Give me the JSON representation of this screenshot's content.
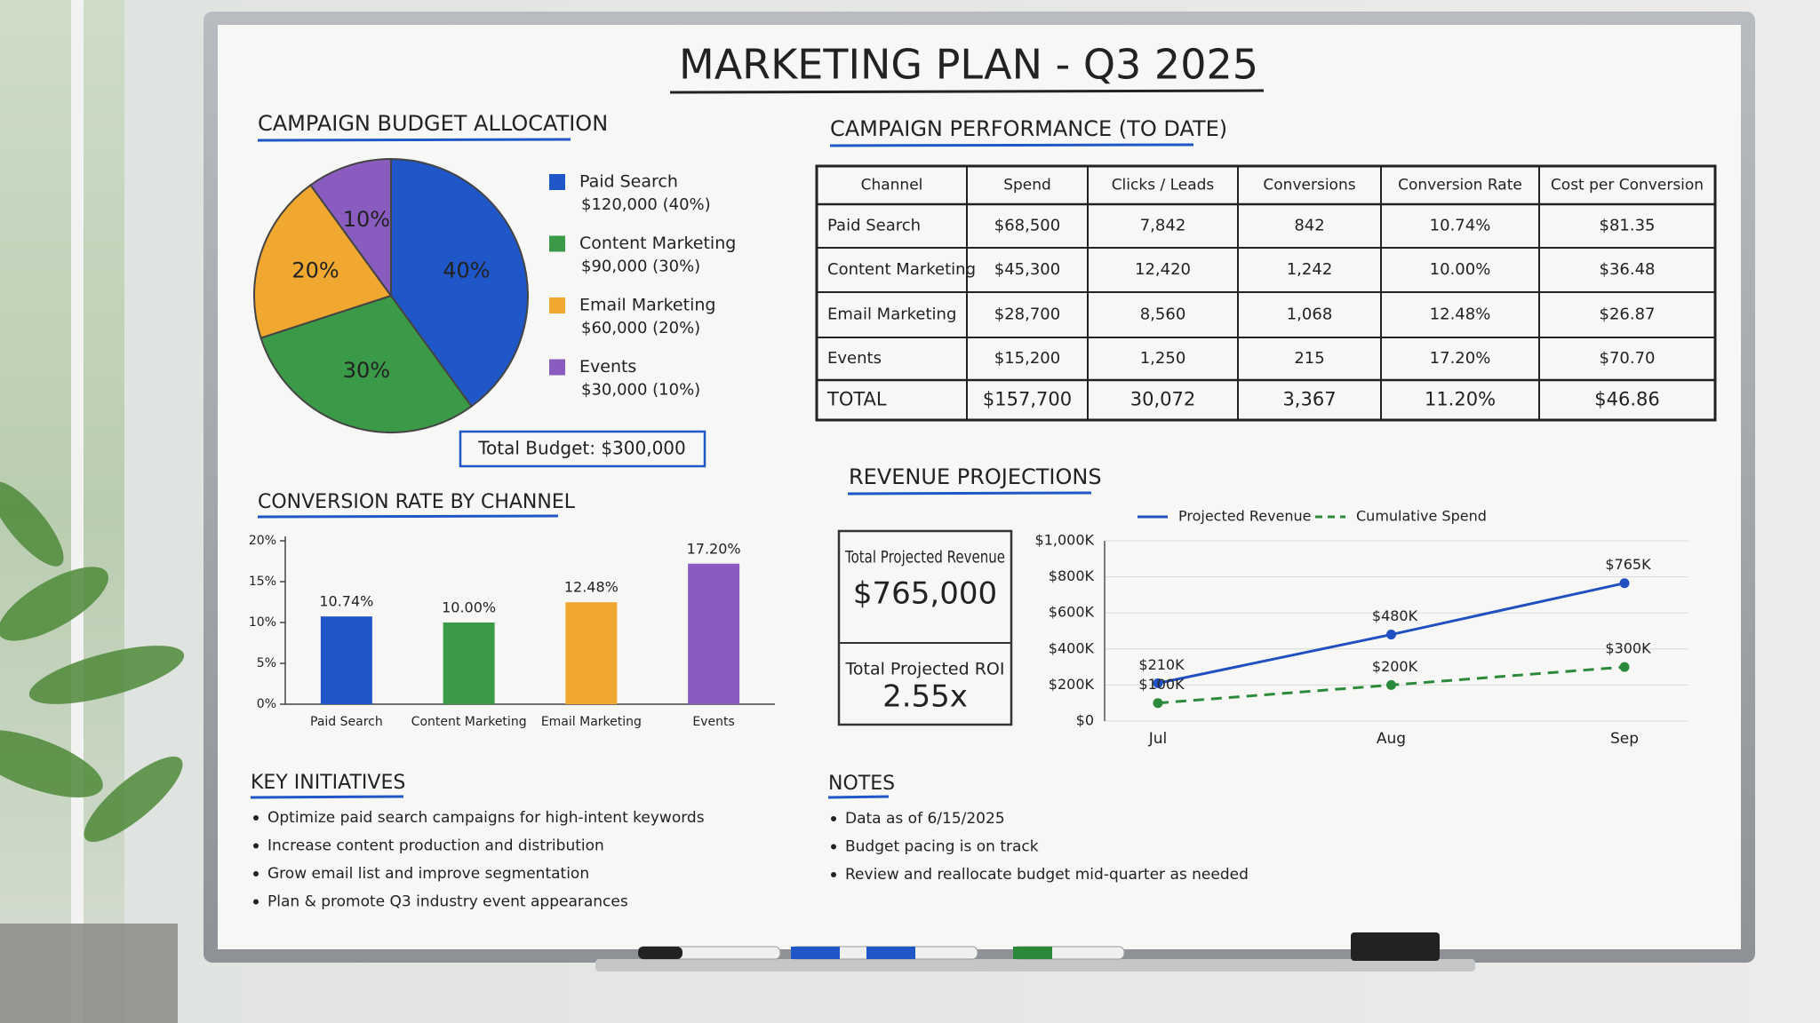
{
  "title": "MARKETING PLAN - Q3 2025",
  "chart_data": [
    {
      "type": "pie",
      "title": "CAMPAIGN BUDGET ALLOCATION",
      "categories": [
        "Paid Search",
        "Content Marketing",
        "Email Marketing",
        "Events"
      ],
      "values": [
        40,
        30,
        20,
        10
      ],
      "value_labels": [
        "40%",
        "30%",
        "20%",
        "10%"
      ],
      "colors": [
        "#1f56c8",
        "#3a9a48",
        "#f0a830",
        "#8a5cc0"
      ],
      "legend_details": [
        "$120,000 (40%)",
        "$90,000 (30%)",
        "$60,000 (20%)",
        "$30,000 (10%)"
      ],
      "total": "Total Budget: $300,000"
    },
    {
      "type": "bar",
      "title": "CONVERSION RATE BY CHANNEL",
      "categories": [
        "Paid Search",
        "Content Marketing",
        "Email Marketing",
        "Events"
      ],
      "values": [
        10.74,
        10.0,
        12.48,
        17.2
      ],
      "value_labels": [
        "10.74%",
        "10.00%",
        "12.48%",
        "17.20%"
      ],
      "colors": [
        "#1f56c8",
        "#3a9a48",
        "#f0a830",
        "#8a5cc0"
      ],
      "ylim": [
        0,
        20
      ],
      "yticks": [
        {
          "value": 0,
          "label": "0%"
        },
        {
          "value": 5,
          "label": "5%"
        },
        {
          "value": 10,
          "label": "10%"
        },
        {
          "value": 15,
          "label": "15%"
        },
        {
          "value": 20,
          "label": "20%"
        }
      ]
    },
    {
      "type": "line",
      "title": "REVENUE PROJECTIONS",
      "categories": [
        "Jul",
        "Aug",
        "Sep"
      ],
      "series": [
        {
          "name": "Projected Revenue",
          "color": "#1f4fc0",
          "line_style": "solid",
          "values": [
            210000,
            480000,
            765000
          ],
          "value_labels": [
            "$210K",
            "$480K",
            "$765K"
          ]
        },
        {
          "name": "Cumulative Spend",
          "color": "#2a8a3a",
          "line_style": "dashed",
          "values": [
            100000,
            200000,
            300000
          ],
          "value_labels": [
            "$100K",
            "$200K",
            "$300K"
          ]
        }
      ],
      "ylim": [
        0,
        1000000
      ],
      "yticks": [
        {
          "value": 0,
          "label": "$0"
        },
        {
          "value": 200000,
          "label": "$200K"
        },
        {
          "value": 400000,
          "label": "$400K"
        },
        {
          "value": 600000,
          "label": "$600K"
        },
        {
          "value": 800000,
          "label": "$800K"
        },
        {
          "value": 1000000,
          "label": "$1,000K"
        }
      ],
      "grid": true,
      "kpis": [
        {
          "label": "Total Projected Revenue",
          "value": "$765,000",
          "color": "#1f4fc0"
        },
        {
          "label": "Total Projected ROI",
          "value": "2.55x",
          "color": "#2a8a3a"
        }
      ]
    }
  ],
  "table": {
    "title": "CAMPAIGN PERFORMANCE (TO DATE)",
    "headers": [
      "Channel",
      "Spend",
      "Clicks / Leads",
      "Conversions",
      "Conversion Rate",
      "Cost per Conversion"
    ],
    "rows": [
      [
        "Paid Search",
        "$68,500",
        "7,842",
        "842",
        "10.74%",
        "$81.35"
      ],
      [
        "Content Marketing",
        "$45,300",
        "12,420",
        "1,242",
        "10.00%",
        "$36.48"
      ],
      [
        "Email Marketing",
        "$28,700",
        "8,560",
        "1,068",
        "12.48%",
        "$26.87"
      ],
      [
        "Events",
        "$15,200",
        "1,250",
        "215",
        "17.20%",
        "$70.70"
      ],
      [
        "TOTAL",
        "$157,700",
        "30,072",
        "3,367",
        "11.20%",
        "$46.86"
      ]
    ],
    "label_colors": [
      "#1f56c8",
      "#2a8a3a",
      "#e8961e",
      "#7a4cb0",
      "#1f4fc0"
    ],
    "header_color": "#1f4fc0"
  },
  "key_initiatives": {
    "title": "KEY INITIATIVES",
    "items": [
      "Optimize paid search campaigns for high-intent keywords",
      "Increase content production and distribution",
      "Grow email list and improve segmentation",
      "Plan & promote Q3 industry event appearances"
    ]
  },
  "notes": {
    "title": "NOTES",
    "items": [
      "Data as of 6/15/2025",
      "Budget pacing is on track",
      "Review and reallocate budget mid-quarter as needed"
    ]
  }
}
